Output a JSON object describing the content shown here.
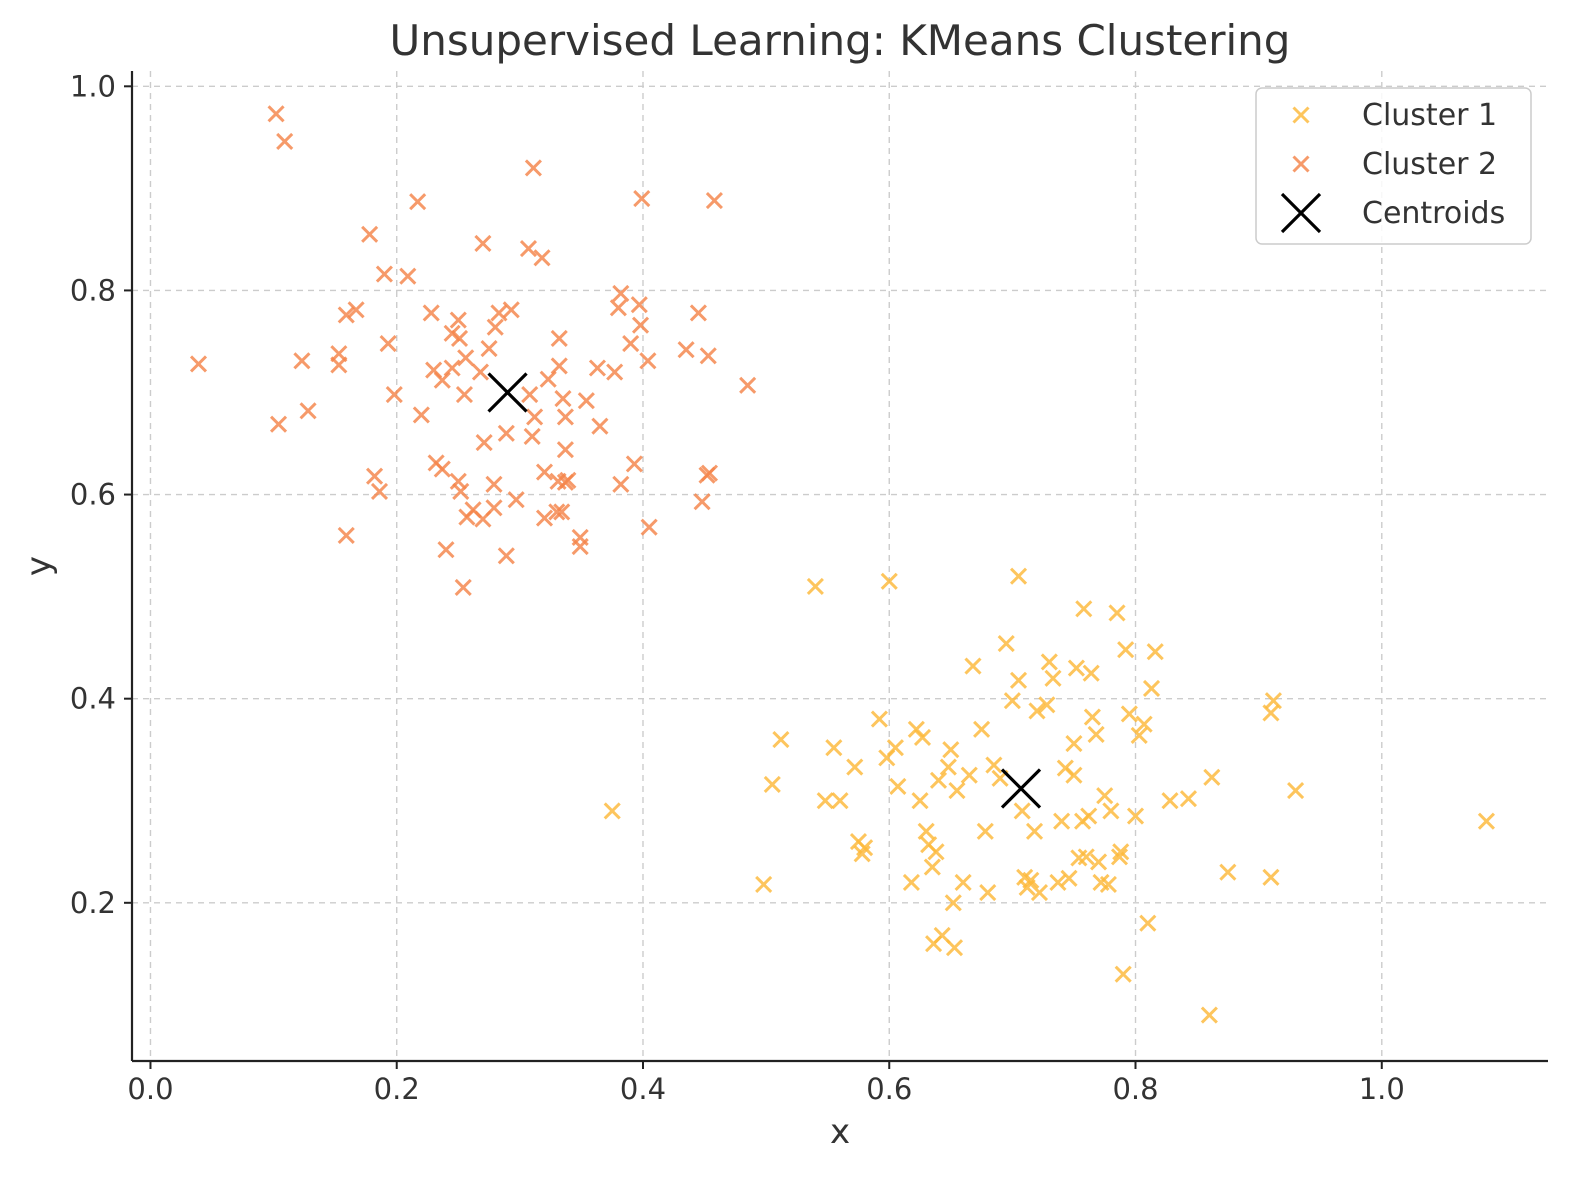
{
  "chart_data": {
    "type": "scatter",
    "title": "Unsupervised Learning: KMeans Clustering",
    "xlabel": "x",
    "ylabel": "y",
    "xlim": [
      -0.015,
      1.135
    ],
    "ylim": [
      0.045,
      1.015
    ],
    "x_ticks": [
      0.0,
      0.2,
      0.4,
      0.6,
      0.8,
      1.0
    ],
    "x_tick_labels": [
      "0.0",
      "0.2",
      "0.4",
      "0.6",
      "0.8",
      "1.0"
    ],
    "y_ticks": [
      0.2,
      0.4,
      0.6,
      0.8,
      1.0
    ],
    "y_tick_labels": [
      "0.2",
      "0.4",
      "0.6",
      "0.8",
      "1.0"
    ],
    "grid": true,
    "legend": {
      "position": "top-right"
    },
    "series": [
      {
        "name": "Cluster 1",
        "color": "#FDB93A",
        "marker": "x",
        "points": [
          [
            0.54,
            0.51
          ],
          [
            0.6,
            0.515
          ],
          [
            0.705,
            0.52
          ],
          [
            0.375,
            0.29
          ],
          [
            0.498,
            0.218
          ],
          [
            0.505,
            0.316
          ],
          [
            0.512,
            0.36
          ],
          [
            0.548,
            0.3
          ],
          [
            0.555,
            0.352
          ],
          [
            0.56,
            0.3
          ],
          [
            0.572,
            0.333
          ],
          [
            0.575,
            0.26
          ],
          [
            0.578,
            0.248
          ],
          [
            0.58,
            0.254
          ],
          [
            0.592,
            0.38
          ],
          [
            0.598,
            0.342
          ],
          [
            0.605,
            0.352
          ],
          [
            0.607,
            0.314
          ],
          [
            0.618,
            0.22
          ],
          [
            0.622,
            0.37
          ],
          [
            0.625,
            0.3
          ],
          [
            0.627,
            0.362
          ],
          [
            0.63,
            0.27
          ],
          [
            0.632,
            0.257
          ],
          [
            0.635,
            0.235
          ],
          [
            0.636,
            0.16
          ],
          [
            0.638,
            0.25
          ],
          [
            0.64,
            0.32
          ],
          [
            0.643,
            0.168
          ],
          [
            0.648,
            0.333
          ],
          [
            0.65,
            0.35
          ],
          [
            0.652,
            0.2
          ],
          [
            0.653,
            0.156
          ],
          [
            0.655,
            0.31
          ],
          [
            0.66,
            0.22
          ],
          [
            0.665,
            0.325
          ],
          [
            0.668,
            0.432
          ],
          [
            0.675,
            0.37
          ],
          [
            0.678,
            0.27
          ],
          [
            0.68,
            0.21
          ],
          [
            0.685,
            0.335
          ],
          [
            0.69,
            0.322
          ],
          [
            0.695,
            0.454
          ],
          [
            0.7,
            0.398
          ],
          [
            0.705,
            0.418
          ],
          [
            0.708,
            0.29
          ],
          [
            0.71,
            0.225
          ],
          [
            0.712,
            0.215
          ],
          [
            0.715,
            0.222
          ],
          [
            0.718,
            0.27
          ],
          [
            0.72,
            0.388
          ],
          [
            0.722,
            0.21
          ],
          [
            0.728,
            0.394
          ],
          [
            0.73,
            0.436
          ],
          [
            0.733,
            0.42
          ],
          [
            0.737,
            0.22
          ],
          [
            0.74,
            0.28
          ],
          [
            0.743,
            0.332
          ],
          [
            0.746,
            0.224
          ],
          [
            0.75,
            0.325
          ],
          [
            0.75,
            0.356
          ],
          [
            0.752,
            0.43
          ],
          [
            0.754,
            0.244
          ],
          [
            0.757,
            0.28
          ],
          [
            0.758,
            0.488
          ],
          [
            0.76,
            0.245
          ],
          [
            0.762,
            0.285
          ],
          [
            0.764,
            0.425
          ],
          [
            0.765,
            0.382
          ],
          [
            0.768,
            0.365
          ],
          [
            0.77,
            0.24
          ],
          [
            0.772,
            0.22
          ],
          [
            0.775,
            0.305
          ],
          [
            0.778,
            0.218
          ],
          [
            0.78,
            0.29
          ],
          [
            0.785,
            0.484
          ],
          [
            0.787,
            0.245
          ],
          [
            0.788,
            0.25
          ],
          [
            0.79,
            0.13
          ],
          [
            0.792,
            0.448
          ],
          [
            0.795,
            0.385
          ],
          [
            0.8,
            0.285
          ],
          [
            0.803,
            0.364
          ],
          [
            0.807,
            0.375
          ],
          [
            0.81,
            0.18
          ],
          [
            0.813,
            0.41
          ],
          [
            0.816,
            0.446
          ],
          [
            0.828,
            0.3
          ],
          [
            0.843,
            0.302
          ],
          [
            0.86,
            0.09
          ],
          [
            0.862,
            0.323
          ],
          [
            0.875,
            0.23
          ],
          [
            0.91,
            0.225
          ],
          [
            0.91,
            0.386
          ],
          [
            0.912,
            0.398
          ],
          [
            0.93,
            0.31
          ],
          [
            1.085,
            0.28
          ]
        ]
      },
      {
        "name": "Cluster 2",
        "color": "#F5854A",
        "marker": "x",
        "points": [
          [
            0.102,
            0.973
          ],
          [
            0.109,
            0.946
          ],
          [
            0.311,
            0.92
          ],
          [
            0.399,
            0.89
          ],
          [
            0.458,
            0.888
          ],
          [
            0.217,
            0.887
          ],
          [
            0.178,
            0.855
          ],
          [
            0.27,
            0.846
          ],
          [
            0.307,
            0.841
          ],
          [
            0.318,
            0.832
          ],
          [
            0.19,
            0.816
          ],
          [
            0.209,
            0.814
          ],
          [
            0.382,
            0.797
          ],
          [
            0.397,
            0.786
          ],
          [
            0.38,
            0.783
          ],
          [
            0.293,
            0.781
          ],
          [
            0.167,
            0.781
          ],
          [
            0.283,
            0.778
          ],
          [
            0.228,
            0.778
          ],
          [
            0.445,
            0.778
          ],
          [
            0.159,
            0.776
          ],
          [
            0.25,
            0.771
          ],
          [
            0.398,
            0.766
          ],
          [
            0.28,
            0.764
          ],
          [
            0.245,
            0.758
          ],
          [
            0.251,
            0.753
          ],
          [
            0.332,
            0.753
          ],
          [
            0.193,
            0.748
          ],
          [
            0.39,
            0.748
          ],
          [
            0.275,
            0.743
          ],
          [
            0.435,
            0.742
          ],
          [
            0.153,
            0.738
          ],
          [
            0.453,
            0.736
          ],
          [
            0.256,
            0.734
          ],
          [
            0.123,
            0.731
          ],
          [
            0.404,
            0.731
          ],
          [
            0.039,
            0.728
          ],
          [
            0.153,
            0.727
          ],
          [
            0.332,
            0.726
          ],
          [
            0.363,
            0.724
          ],
          [
            0.245,
            0.724
          ],
          [
            0.23,
            0.722
          ],
          [
            0.377,
            0.72
          ],
          [
            0.268,
            0.72
          ],
          [
            0.323,
            0.713
          ],
          [
            0.237,
            0.712
          ],
          [
            0.485,
            0.707
          ],
          [
            0.198,
            0.698
          ],
          [
            0.255,
            0.698
          ],
          [
            0.308,
            0.698
          ],
          [
            0.335,
            0.694
          ],
          [
            0.354,
            0.692
          ],
          [
            0.128,
            0.682
          ],
          [
            0.22,
            0.678
          ],
          [
            0.312,
            0.676
          ],
          [
            0.337,
            0.676
          ],
          [
            0.104,
            0.669
          ],
          [
            0.365,
            0.667
          ],
          [
            0.289,
            0.66
          ],
          [
            0.31,
            0.657
          ],
          [
            0.271,
            0.651
          ],
          [
            0.337,
            0.644
          ],
          [
            0.232,
            0.631
          ],
          [
            0.237,
            0.625
          ],
          [
            0.393,
            0.63
          ],
          [
            0.32,
            0.622
          ],
          [
            0.454,
            0.621
          ],
          [
            0.452,
            0.619
          ],
          [
            0.182,
            0.618
          ],
          [
            0.25,
            0.613
          ],
          [
            0.339,
            0.614
          ],
          [
            0.331,
            0.613
          ],
          [
            0.337,
            0.612
          ],
          [
            0.279,
            0.61
          ],
          [
            0.382,
            0.61
          ],
          [
            0.186,
            0.603
          ],
          [
            0.252,
            0.603
          ],
          [
            0.297,
            0.595
          ],
          [
            0.448,
            0.593
          ],
          [
            0.279,
            0.587
          ],
          [
            0.262,
            0.585
          ],
          [
            0.33,
            0.583
          ],
          [
            0.334,
            0.583
          ],
          [
            0.257,
            0.578
          ],
          [
            0.32,
            0.577
          ],
          [
            0.27,
            0.576
          ],
          [
            0.159,
            0.56
          ],
          [
            0.349,
            0.558
          ],
          [
            0.349,
            0.549
          ],
          [
            0.405,
            0.568
          ],
          [
            0.24,
            0.546
          ],
          [
            0.289,
            0.54
          ],
          [
            0.254,
            0.509
          ]
        ]
      },
      {
        "name": "Centroids",
        "color": "#000000",
        "marker": "x-large",
        "points": [
          [
            0.29,
            0.7
          ],
          [
            0.707,
            0.312
          ]
        ]
      }
    ]
  }
}
